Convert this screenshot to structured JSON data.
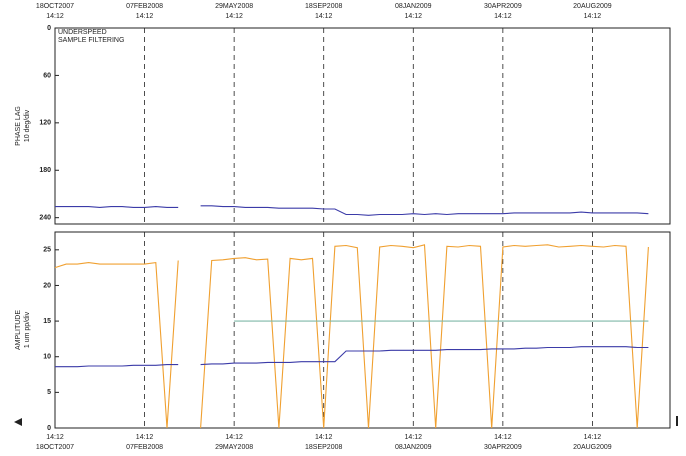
{
  "chart_data": [
    {
      "type": "line",
      "ylabel": "PHASE LAG",
      "ylabel_unit": "10 deg/div",
      "annotations": [
        "UNDERSPEED",
        "SAMPLE FILTERING"
      ],
      "x": [
        "2007-10-18",
        "2007-11-01",
        "2007-11-15",
        "2007-11-29",
        "2007-12-13",
        "2007-12-27",
        "2008-01-10",
        "2008-01-24",
        "2008-02-07",
        "2008-02-21",
        "2008-03-06",
        "2008-03-20",
        "2008-04-03",
        "2008-04-17",
        "2008-05-01",
        "2008-05-15",
        "2008-05-29",
        "2008-06-12",
        "2008-06-26",
        "2008-07-10",
        "2008-07-24",
        "2008-08-07",
        "2008-08-21",
        "2008-09-04",
        "2008-09-18",
        "2008-10-02",
        "2008-10-16",
        "2008-10-30",
        "2008-11-13",
        "2008-11-27",
        "2008-12-11",
        "2008-12-25",
        "2009-01-08",
        "2009-01-22",
        "2009-02-05",
        "2009-02-19",
        "2009-03-05",
        "2009-03-19",
        "2009-04-02",
        "2009-04-16",
        "2009-04-30",
        "2009-05-14",
        "2009-05-28",
        "2009-06-11",
        "2009-06-25",
        "2009-07-09",
        "2009-07-23",
        "2009-08-06",
        "2009-08-20",
        "2009-09-03",
        "2009-09-17",
        "2009-10-01",
        "2009-10-15",
        "2009-10-29"
      ],
      "series": [
        {
          "color": "#3b3ba8",
          "values": [
            226,
            226,
            226,
            226,
            227,
            226,
            226,
            227,
            227,
            226,
            227,
            227,
            null,
            225,
            225,
            226,
            226,
            227,
            227,
            227,
            228,
            228,
            228,
            228,
            229,
            229,
            236,
            236,
            237,
            236,
            236,
            236,
            235,
            236,
            235,
            236,
            235,
            235,
            235,
            235,
            235,
            234,
            234,
            234,
            234,
            234,
            234,
            233,
            234,
            234,
            234,
            234,
            234,
            235
          ]
        }
      ],
      "xlim": [
        "2007-10-18",
        "2009-11-25"
      ],
      "xticks": [
        {
          "value": "2007-10-18",
          "label": "18OCT2007 14:12"
        },
        {
          "value": "2008-02-07",
          "label": "07FEB2008 14:12"
        },
        {
          "value": "2008-05-29",
          "label": "29MAY2008 14:12"
        },
        {
          "value": "2008-09-18",
          "label": "18SEP2008 14:12"
        },
        {
          "value": "2009-01-08",
          "label": "08JAN2009 14:12"
        },
        {
          "value": "2009-04-30",
          "label": "30APR2009 14:12"
        },
        {
          "value": "2009-08-20",
          "label": "20AUG2009 14:12"
        }
      ],
      "ylim": [
        248,
        0
      ],
      "yticks": [
        0,
        60,
        120,
        180,
        240
      ],
      "grid": true
    },
    {
      "type": "line",
      "ylabel": "AMPLITUDE",
      "ylabel_unit": "1 um pp/div",
      "x": [
        "2007-10-18",
        "2007-11-01",
        "2007-11-15",
        "2007-11-29",
        "2007-12-13",
        "2007-12-27",
        "2008-01-10",
        "2008-01-24",
        "2008-02-07",
        "2008-02-21",
        "2008-03-06",
        "2008-03-20",
        "2008-04-03",
        "2008-04-17",
        "2008-05-01",
        "2008-05-15",
        "2008-05-29",
        "2008-06-12",
        "2008-06-26",
        "2008-07-10",
        "2008-07-24",
        "2008-08-07",
        "2008-08-21",
        "2008-09-04",
        "2008-09-18",
        "2008-10-02",
        "2008-10-16",
        "2008-10-30",
        "2008-11-13",
        "2008-11-27",
        "2008-12-11",
        "2008-12-25",
        "2009-01-08",
        "2009-01-22",
        "2009-02-05",
        "2009-02-19",
        "2009-03-05",
        "2009-03-19",
        "2009-04-02",
        "2009-04-16",
        "2009-04-30",
        "2009-05-14",
        "2009-05-28",
        "2009-06-11",
        "2009-06-25",
        "2009-07-09",
        "2009-07-23",
        "2009-08-06",
        "2009-08-20",
        "2009-09-03",
        "2009-09-17",
        "2009-10-01",
        "2009-10-15",
        "2009-10-29"
      ],
      "series": [
        {
          "color": "#f0a030",
          "values": [
            22.5,
            23,
            23,
            23.2,
            23,
            23,
            23,
            23,
            23,
            23.2,
            0,
            23.5,
            null,
            0,
            23.5,
            23.6,
            23.8,
            23.9,
            23.6,
            23.7,
            0,
            23.8,
            23.6,
            23.8,
            0,
            25.5,
            25.6,
            25.3,
            0,
            25.4,
            25.6,
            25.5,
            25.3,
            25.7,
            0,
            25.5,
            25.4,
            25.6,
            25.5,
            0,
            25.4,
            25.6,
            25.5,
            25.6,
            25.7,
            25.4,
            25.5,
            25.6,
            25.5,
            25.4,
            25.6,
            25.5,
            0,
            25.4
          ]
        },
        {
          "color": "#3b3ba8",
          "values": [
            8.6,
            8.6,
            8.6,
            8.7,
            8.7,
            8.7,
            8.7,
            8.8,
            8.8,
            8.8,
            8.9,
            8.9,
            null,
            8.9,
            9.0,
            9.0,
            9.1,
            9.1,
            9.1,
            9.2,
            9.2,
            9.2,
            9.3,
            9.3,
            9.3,
            9.3,
            10.8,
            10.8,
            10.8,
            10.8,
            10.9,
            10.9,
            10.9,
            10.9,
            10.9,
            11.0,
            11.0,
            11.0,
            11.0,
            11.1,
            11.1,
            11.1,
            11.2,
            11.2,
            11.3,
            11.3,
            11.3,
            11.4,
            11.4,
            11.4,
            11.4,
            11.4,
            11.3,
            11.3
          ]
        },
        {
          "color": "#7fb8a8",
          "values": [
            null,
            null,
            null,
            null,
            null,
            null,
            null,
            null,
            null,
            null,
            null,
            null,
            null,
            null,
            null,
            null,
            15,
            15,
            15,
            15,
            15,
            15,
            15,
            15,
            15,
            15,
            15,
            15,
            15,
            15,
            15,
            15,
            15,
            15,
            15,
            15,
            15,
            15,
            15,
            15,
            15,
            15,
            15,
            15,
            15,
            15,
            15,
            15,
            15,
            15,
            15,
            15,
            15,
            15
          ]
        }
      ],
      "xlim": [
        "2007-10-18",
        "2009-11-25"
      ],
      "xticks": [
        {
          "value": "2007-10-18",
          "label": "18OCT2007 14:12"
        },
        {
          "value": "2008-02-07",
          "label": "07FEB2008 14:12"
        },
        {
          "value": "2008-05-29",
          "label": "29MAY2008 14:12"
        },
        {
          "value": "2008-09-18",
          "label": "18SEP2008 14:12"
        },
        {
          "value": "2009-01-08",
          "label": "08JAN2009 14:12"
        },
        {
          "value": "2009-04-30",
          "label": "30APR2009 14:12"
        },
        {
          "value": "2009-08-20",
          "label": "20AUG2009 14:12"
        }
      ],
      "ylim": [
        0,
        27.5
      ],
      "yticks": [
        0,
        5,
        10,
        15,
        20,
        25
      ],
      "grid": true
    }
  ]
}
